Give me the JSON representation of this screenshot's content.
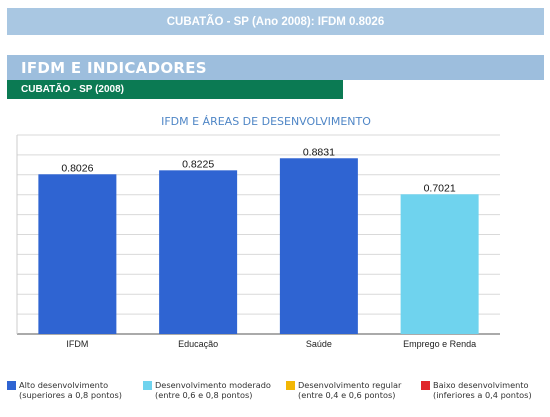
{
  "banner": {
    "title": "CUBATÃO - SP (Ano 2008): IFDM 0.8026"
  },
  "section": {
    "title": "IFDM E INDICADORES"
  },
  "subsection": {
    "title": "CUBATÃO - SP (2008)"
  },
  "chart_data": {
    "type": "bar",
    "title": "IFDM E ÁREAS DE DESENVOLVIMENTO",
    "categories": [
      "IFDM",
      "Educação",
      "Saúde",
      "Emprego e Renda"
    ],
    "values": [
      0.8026,
      0.8225,
      0.8831,
      0.7021
    ],
    "data_labels": [
      "0.8026",
      "0.8225",
      "0.8831",
      "0.7021"
    ],
    "bar_colors": [
      "#2f64d2",
      "#2f64d2",
      "#2f64d2",
      "#6fd3ee"
    ],
    "ylim": [
      0,
      1
    ],
    "grid": true,
    "legend_placement": "bottom"
  },
  "legend": [
    {
      "color": "#2f64d2",
      "line1": "Alto desenvolvimento",
      "line2": "(superiores a 0,8 pontos)"
    },
    {
      "color": "#6fd3ee",
      "line1": "Desenvolvimento moderado",
      "line2": "(entre 0,6 e 0,8 pontos)"
    },
    {
      "color": "#f2b705",
      "line1": "Desenvolvimento regular",
      "line2": "(entre 0,4 e 0,6 pontos)"
    },
    {
      "color": "#e0262a",
      "line1": "Baixo desenvolvimento",
      "line2": "(inferiores a 0,4 pontos)"
    }
  ]
}
